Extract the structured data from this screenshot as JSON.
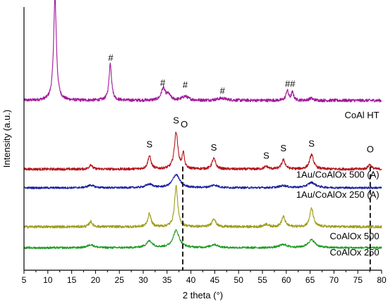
{
  "chart_data": {
    "type": "line",
    "title": "",
    "xlabel": "2 theta (°)",
    "ylabel": "Intensity (a.u.)",
    "xlim": [
      5,
      80
    ],
    "xticks": [
      5,
      10,
      15,
      20,
      25,
      30,
      35,
      40,
      45,
      50,
      55,
      60,
      65,
      70,
      75,
      80
    ],
    "xtick_labels": [
      "5",
      "10",
      "15",
      "20",
      "25",
      "30",
      "35",
      "40",
      "45",
      "50",
      "55",
      "60",
      "65",
      "70",
      "75",
      "80"
    ],
    "ylim": [
      0,
      1
    ],
    "y_ticks_shown": false,
    "grid": false,
    "legend": "none (series labels printed at right end of each trace)",
    "reference_lines_x": [
      38.3,
      77.6
    ],
    "series": [
      {
        "name": "CoAl HT",
        "color": "#a1179b",
        "baseline": 0.645,
        "noise": 0.006,
        "peaks": [
          {
            "x": 11.5,
            "h": 0.39,
            "w": 0.35
          },
          {
            "x": 23.1,
            "h": 0.14,
            "w": 0.33
          },
          {
            "x": 34.2,
            "h": 0.045,
            "w": 0.5
          },
          {
            "x": 35.3,
            "h": 0.02,
            "w": 0.5
          },
          {
            "x": 38.8,
            "h": 0.015,
            "w": 0.8
          },
          {
            "x": 46.5,
            "h": 0.008,
            "w": 1.2
          },
          {
            "x": 60.2,
            "h": 0.038,
            "w": 0.3
          },
          {
            "x": 61.3,
            "h": 0.03,
            "w": 0.3
          },
          {
            "x": 65.2,
            "h": 0.008,
            "w": 0.5
          }
        ]
      },
      {
        "name": "1Au/CoAlOx 500 (A)",
        "color": "#b5121b",
        "baseline": 0.384,
        "noise": 0.005,
        "peaks": [
          {
            "x": 19.0,
            "h": 0.018,
            "w": 0.35
          },
          {
            "x": 31.3,
            "h": 0.05,
            "w": 0.4
          },
          {
            "x": 36.9,
            "h": 0.14,
            "w": 0.45
          },
          {
            "x": 38.4,
            "h": 0.06,
            "w": 0.25
          },
          {
            "x": 44.8,
            "h": 0.04,
            "w": 0.45
          },
          {
            "x": 55.8,
            "h": 0.01,
            "w": 0.5
          },
          {
            "x": 59.4,
            "h": 0.035,
            "w": 0.45
          },
          {
            "x": 65.3,
            "h": 0.055,
            "w": 0.5
          },
          {
            "x": 77.5,
            "h": 0.018,
            "w": 0.4
          }
        ]
      },
      {
        "name": "1Au/CoAlOx 250 (A)",
        "color": "#1b1f9e",
        "baseline": 0.313,
        "noise": 0.004,
        "peaks": [
          {
            "x": 19.0,
            "h": 0.01,
            "w": 0.8
          },
          {
            "x": 31.3,
            "h": 0.013,
            "w": 0.9
          },
          {
            "x": 36.9,
            "h": 0.05,
            "w": 0.9
          },
          {
            "x": 44.9,
            "h": 0.01,
            "w": 0.9
          },
          {
            "x": 59.4,
            "h": 0.008,
            "w": 1.0
          },
          {
            "x": 65.3,
            "h": 0.02,
            "w": 1.0
          }
        ]
      },
      {
        "name": "CoAlOx 500",
        "color": "#9e9c1a",
        "baseline": 0.165,
        "noise": 0.005,
        "peaks": [
          {
            "x": 19.0,
            "h": 0.02,
            "w": 0.4
          },
          {
            "x": 31.3,
            "h": 0.05,
            "w": 0.4
          },
          {
            "x": 36.9,
            "h": 0.155,
            "w": 0.4
          },
          {
            "x": 44.8,
            "h": 0.032,
            "w": 0.45
          },
          {
            "x": 55.8,
            "h": 0.01,
            "w": 0.5
          },
          {
            "x": 59.4,
            "h": 0.038,
            "w": 0.45
          },
          {
            "x": 65.3,
            "h": 0.07,
            "w": 0.45
          }
        ]
      },
      {
        "name": "CoAlOx 250",
        "color": "#1f9a24",
        "baseline": 0.085,
        "noise": 0.004,
        "peaks": [
          {
            "x": 19.0,
            "h": 0.012,
            "w": 0.8
          },
          {
            "x": 31.3,
            "h": 0.025,
            "w": 0.8
          },
          {
            "x": 36.9,
            "h": 0.065,
            "w": 0.8
          },
          {
            "x": 44.9,
            "h": 0.012,
            "w": 0.9
          },
          {
            "x": 59.4,
            "h": 0.012,
            "w": 1.0
          },
          {
            "x": 65.3,
            "h": 0.03,
            "w": 0.9
          }
        ]
      }
    ],
    "annotations": [
      {
        "text": "#",
        "x": 11.5,
        "y": 1.045
      },
      {
        "text": "#",
        "x": 23.2,
        "y": 0.795
      },
      {
        "text": "#",
        "x": 34.1,
        "y": 0.7
      },
      {
        "text": "#",
        "x": 38.8,
        "y": 0.692
      },
      {
        "text": "#",
        "x": 46.6,
        "y": 0.67
      },
      {
        "text": "##",
        "x": 60.8,
        "y": 0.697
      },
      {
        "text": "S",
        "x": 31.3,
        "y": 0.467
      },
      {
        "text": "S",
        "x": 36.9,
        "y": 0.558
      },
      {
        "text": "O",
        "x": 38.6,
        "y": 0.543
      },
      {
        "text": "S",
        "x": 44.8,
        "y": 0.455
      },
      {
        "text": "S",
        "x": 55.8,
        "y": 0.424
      },
      {
        "text": "S",
        "x": 59.4,
        "y": 0.452
      },
      {
        "text": "S",
        "x": 65.3,
        "y": 0.469
      },
      {
        "text": "O",
        "x": 77.6,
        "y": 0.448
      }
    ],
    "series_labels": [
      {
        "text": "CoAl HT",
        "x": 79.5,
        "y": 0.578
      },
      {
        "text": "1Au/CoAlOx 500 (A)",
        "x": 79.5,
        "y": 0.352
      },
      {
        "text": "1Au/CoAlOx 250 (A)",
        "x": 79.5,
        "y": 0.275
      },
      {
        "text": "CoAlOx 500",
        "x": 79.5,
        "y": 0.118
      },
      {
        "text": "CoAlOx 250",
        "x": 79.5,
        "y": 0.056
      }
    ]
  }
}
